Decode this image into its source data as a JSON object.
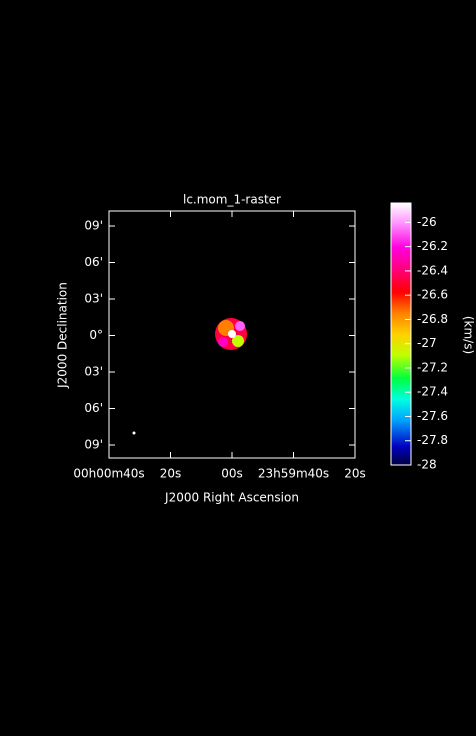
{
  "chart_data": {
    "type": "raster",
    "title": "lc.mom_1-raster",
    "x_label": "J2000 Right Ascension",
    "y_label": "J2000 Declination",
    "xticks": [
      "00h00m40s",
      "20s",
      "00s",
      "23h59m40s",
      "20s"
    ],
    "yticks": [
      "09'",
      "06'",
      "03'",
      "0°",
      "03'",
      "06'",
      "09'"
    ],
    "colorbar": {
      "label": "(km/s)",
      "ylim": [
        -28,
        -25.84
      ],
      "yticks": [
        -26,
        -26.2,
        -26.4,
        -26.6,
        -26.8,
        -27,
        -27.2,
        -27.4,
        -27.6,
        -27.8,
        -28
      ]
    }
  }
}
